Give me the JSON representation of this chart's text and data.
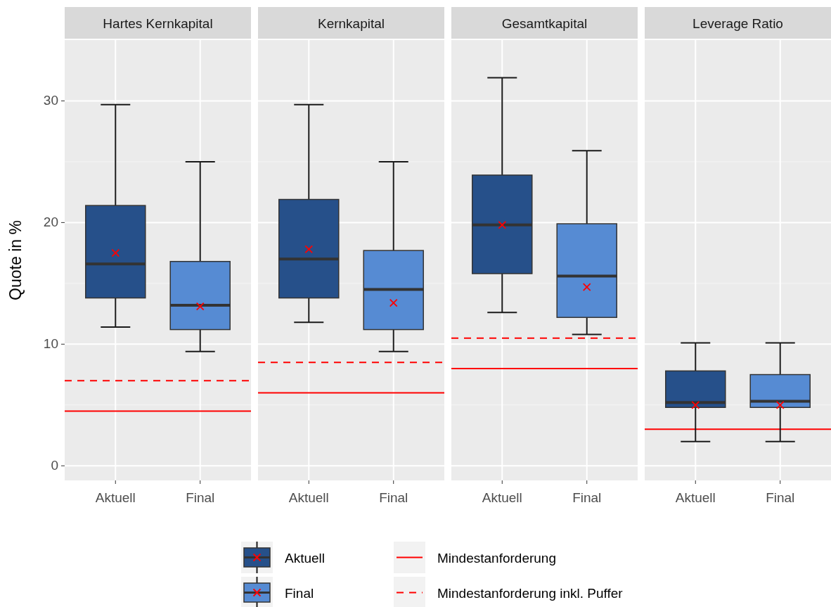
{
  "chart_data": [
    {
      "type": "box",
      "title": "Hartes Kernkapital",
      "ylabel": "Quote in %",
      "categories": [
        "Aktuell",
        "Final"
      ],
      "ylim": [
        -1.2,
        35
      ],
      "yticks": [
        0,
        10,
        20,
        30
      ],
      "grid": true,
      "legend": "bottom",
      "marker": "cross",
      "series": [
        {
          "name": "Aktuell",
          "color": "#26508a",
          "boxes": [
            {
              "low": 11.4,
              "q1": 13.8,
              "median": 16.6,
              "q3": 21.4,
              "high": 29.7,
              "mean": 17.5
            },
            null
          ]
        },
        {
          "name": "Final",
          "color": "#568bd3",
          "boxes": [
            null,
            {
              "low": 9.4,
              "q1": 11.2,
              "median": 13.2,
              "q3": 16.8,
              "high": 25.0,
              "mean": 13.1
            }
          ]
        }
      ],
      "ref_lines": [
        {
          "axis": "y",
          "value": 4.5,
          "label": "Mindestanforderung",
          "color": "#ff0000",
          "line_style": "solid"
        },
        {
          "axis": "y",
          "value": 7.0,
          "label": "Mindestanforderung inkl. Puffer",
          "color": "#ff0000",
          "line_style": "dashed"
        }
      ]
    },
    {
      "type": "box",
      "title": "Kernkapital",
      "categories": [
        "Aktuell",
        "Final"
      ],
      "ylim": [
        -1.2,
        35
      ],
      "yticks": [
        0,
        10,
        20,
        30
      ],
      "grid": true,
      "tick_labels": "x",
      "marker": "cross",
      "series": [
        {
          "color": "#26508a",
          "boxes": [
            {
              "low": 11.8,
              "q1": 13.8,
              "median": 17.0,
              "q3": 21.9,
              "high": 29.7,
              "mean": 17.8
            },
            null
          ]
        },
        {
          "color": "#568bd3",
          "boxes": [
            null,
            {
              "low": 9.4,
              "q1": 11.2,
              "median": 14.5,
              "q3": 17.7,
              "high": 25.0,
              "mean": 13.4
            }
          ]
        }
      ],
      "ref_lines": [
        {
          "axis": "y",
          "value": 6.0,
          "color": "#ff0000",
          "line_style": "solid"
        },
        {
          "axis": "y",
          "value": 8.5,
          "color": "#ff0000",
          "line_style": "dashed"
        }
      ]
    },
    {
      "type": "box",
      "title": "Gesamtkapital",
      "categories": [
        "Aktuell",
        "Final"
      ],
      "ylim": [
        -1.2,
        35
      ],
      "yticks": [
        0,
        10,
        20,
        30
      ],
      "grid": true,
      "tick_labels": "x",
      "marker": "cross",
      "series": [
        {
          "color": "#26508a",
          "boxes": [
            {
              "low": 12.6,
              "q1": 15.8,
              "median": 19.8,
              "q3": 23.9,
              "high": 31.9,
              "mean": 19.8
            },
            null
          ]
        },
        {
          "color": "#568bd3",
          "boxes": [
            null,
            {
              "low": 10.8,
              "q1": 12.2,
              "median": 15.6,
              "q3": 19.9,
              "high": 25.9,
              "mean": 14.7
            }
          ]
        }
      ],
      "ref_lines": [
        {
          "axis": "y",
          "value": 8.0,
          "color": "#ff0000",
          "line_style": "solid"
        },
        {
          "axis": "y",
          "value": 10.5,
          "color": "#ff0000",
          "line_style": "dashed"
        }
      ]
    },
    {
      "type": "box",
      "title": "Leverage Ratio",
      "categories": [
        "Aktuell",
        "Final"
      ],
      "ylim": [
        -1.2,
        35
      ],
      "yticks": [
        0,
        10,
        20,
        30
      ],
      "grid": true,
      "tick_labels": "x",
      "marker": "cross",
      "series": [
        {
          "color": "#26508a",
          "boxes": [
            {
              "low": 2.0,
              "q1": 4.8,
              "median": 5.2,
              "q3": 7.8,
              "high": 10.1,
              "mean": 5.0
            },
            null
          ]
        },
        {
          "color": "#568bd3",
          "boxes": [
            null,
            {
              "low": 2.0,
              "q1": 4.8,
              "median": 5.3,
              "q3": 7.5,
              "high": 10.1,
              "mean": 5.0
            }
          ]
        }
      ],
      "ref_lines": [
        {
          "axis": "y",
          "value": 3.0,
          "color": "#ff0000",
          "line_style": "solid"
        }
      ]
    }
  ]
}
